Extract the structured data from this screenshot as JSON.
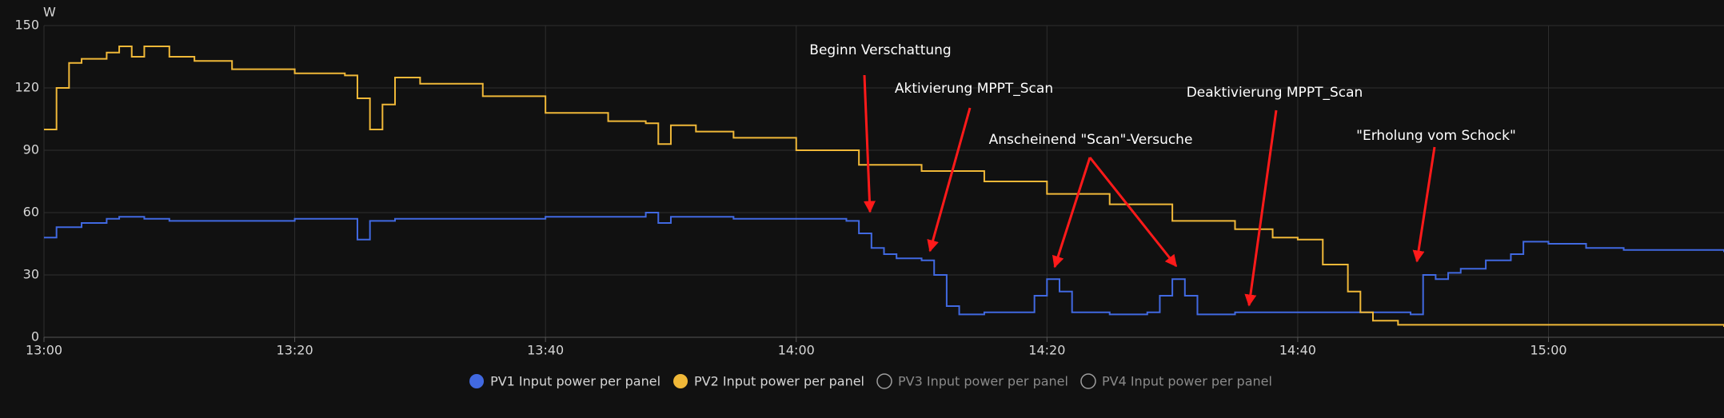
{
  "chart_data": {
    "type": "line",
    "y_label": "W",
    "ylim": [
      0,
      150
    ],
    "yticks": [
      0,
      30,
      60,
      90,
      120,
      150
    ],
    "xlim": [
      "13:00",
      "15:14"
    ],
    "xticks": [
      "13:00",
      "13:20",
      "13:40",
      "14:00",
      "14:20",
      "14:40",
      "15:00"
    ],
    "grid": true,
    "annotations": [
      "Beginn Verschattung",
      "Aktivierung MPPT_Scan",
      "Anscheinend \"Scan\"-Versuche",
      "Deaktivierung MPPT_Scan",
      "\"Erholung vom Schock\""
    ],
    "series": [
      {
        "name": "PV1 Input power per panel",
        "color": "#4169e1",
        "visible": true,
        "x": [
          "13:00",
          "13:01",
          "13:03",
          "13:05",
          "13:06",
          "13:08",
          "13:10",
          "13:15",
          "13:20",
          "13:24",
          "13:25",
          "13:26",
          "13:28",
          "13:35",
          "13:40",
          "13:48",
          "13:49",
          "13:50",
          "13:55",
          "14:00",
          "14:04",
          "14:05",
          "14:06",
          "14:07",
          "14:08",
          "14:10",
          "14:11",
          "14:12",
          "14:13",
          "14:15",
          "14:18",
          "14:19",
          "14:20",
          "14:21",
          "14:22",
          "14:25",
          "14:28",
          "14:29",
          "14:30",
          "14:31",
          "14:32",
          "14:35",
          "14:40",
          "14:45",
          "14:49",
          "14:50",
          "14:51",
          "14:52",
          "14:53",
          "14:55",
          "14:57",
          "14:58",
          "15:00",
          "15:03",
          "15:06",
          "15:10",
          "15:14"
        ],
        "values": [
          48,
          53,
          55,
          57,
          58,
          57,
          56,
          56,
          57,
          57,
          47,
          56,
          57,
          57,
          58,
          60,
          55,
          58,
          57,
          57,
          56,
          50,
          43,
          40,
          38,
          37,
          30,
          15,
          11,
          12,
          12,
          20,
          28,
          22,
          12,
          11,
          12,
          20,
          28,
          20,
          11,
          12,
          12,
          12,
          11,
          30,
          28,
          31,
          33,
          37,
          40,
          46,
          45,
          43,
          42,
          42,
          41
        ]
      },
      {
        "name": "PV2 Input power per panel",
        "color": "#f0b838",
        "visible": true,
        "x": [
          "13:00",
          "13:01",
          "13:02",
          "13:03",
          "13:05",
          "13:06",
          "13:07",
          "13:08",
          "13:10",
          "13:12",
          "13:15",
          "13:20",
          "13:24",
          "13:25",
          "13:26",
          "13:27",
          "13:28",
          "13:30",
          "13:35",
          "13:40",
          "13:45",
          "13:48",
          "13:49",
          "13:50",
          "13:52",
          "13:55",
          "14:00",
          "14:05",
          "14:10",
          "14:15",
          "14:20",
          "14:25",
          "14:30",
          "14:35",
          "14:38",
          "14:40",
          "14:42",
          "14:44",
          "14:45",
          "14:46",
          "14:48",
          "14:55",
          "15:00",
          "15:05",
          "15:10",
          "15:14"
        ],
        "values": [
          100,
          120,
          132,
          134,
          137,
          140,
          135,
          140,
          135,
          133,
          129,
          127,
          126,
          115,
          100,
          112,
          125,
          122,
          116,
          108,
          104,
          103,
          93,
          102,
          99,
          96,
          90,
          83,
          80,
          75,
          69,
          64,
          56,
          52,
          48,
          47,
          35,
          22,
          12,
          8,
          6,
          6,
          6,
          6,
          6,
          5
        ]
      },
      {
        "name": "PV3 Input power per panel",
        "color": "#9e9e9e",
        "visible": false,
        "x": [],
        "values": []
      },
      {
        "name": "PV4 Input power per panel",
        "color": "#9e9e9e",
        "visible": false,
        "x": [],
        "values": []
      }
    ]
  }
}
